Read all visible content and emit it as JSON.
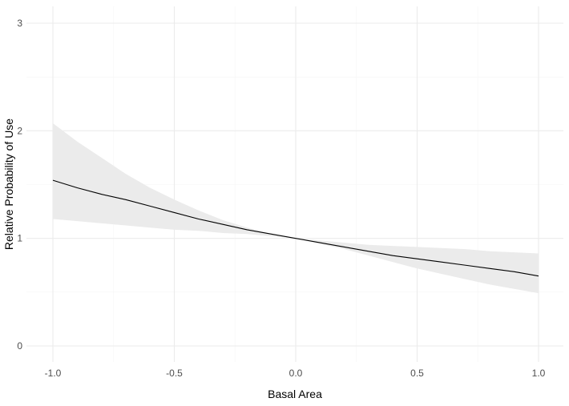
{
  "chart_data": {
    "type": "line",
    "xlabel": "Basal Area",
    "ylabel": "Relative Probability of Use",
    "xlim": [
      -1.0,
      1.0
    ],
    "ylim": [
      0,
      3
    ],
    "x_ticks": [
      "-1.0",
      "-0.5",
      "0.0",
      "0.5",
      "1.0"
    ],
    "y_ticks": [
      "0",
      "1",
      "2",
      "3"
    ],
    "grid": true,
    "legend": "none",
    "series": [
      {
        "type": "line",
        "x": [
          -1.0,
          -0.9,
          -0.8,
          -0.7,
          -0.6,
          -0.5,
          -0.4,
          -0.3,
          -0.2,
          -0.1,
          0.0,
          0.1,
          0.2,
          0.3,
          0.4,
          0.5,
          0.6,
          0.7,
          0.8,
          0.9,
          1.0
        ],
        "y": [
          1.54,
          1.47,
          1.41,
          1.36,
          1.3,
          1.24,
          1.18,
          1.13,
          1.08,
          1.04,
          1.0,
          0.96,
          0.92,
          0.88,
          0.84,
          0.81,
          0.78,
          0.75,
          0.72,
          0.69,
          0.65
        ],
        "lower": [
          1.18,
          1.16,
          1.14,
          1.12,
          1.1,
          1.08,
          1.07,
          1.05,
          1.04,
          1.02,
          1.0,
          0.95,
          0.9,
          0.84,
          0.78,
          0.72,
          0.67,
          0.62,
          0.57,
          0.53,
          0.49
        ],
        "upper": [
          2.07,
          1.9,
          1.75,
          1.6,
          1.47,
          1.36,
          1.26,
          1.17,
          1.1,
          1.04,
          1.0,
          0.98,
          0.96,
          0.94,
          0.93,
          0.92,
          0.91,
          0.9,
          0.88,
          0.87,
          0.86
        ]
      }
    ],
    "colors": {
      "line": "#000000",
      "ribbon": "#ebebeb",
      "grid_major": "#ebebeb",
      "grid_minor": "#f5f5f5",
      "background": "#ffffff"
    }
  }
}
